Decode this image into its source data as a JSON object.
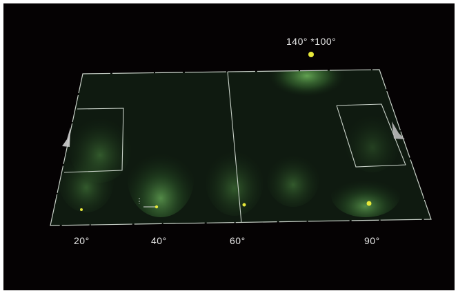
{
  "colors": {
    "background": "#050203",
    "field": "#0f1a10",
    "lines": "#c9d2c9",
    "light_glow": "#6fbf5a",
    "fixture": "#e7e83a",
    "goal": "#cfcfcf"
  },
  "labels": {
    "angle_20": "20°",
    "angle_40": "40°",
    "angle_60": "60°",
    "angle_90": "90°",
    "angle_top": "140° *100°"
  }
}
